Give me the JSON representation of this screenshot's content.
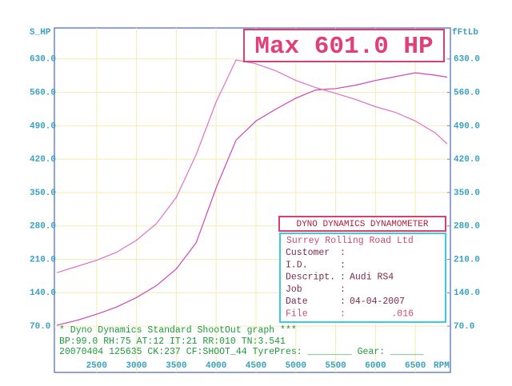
{
  "chart_data": {
    "type": "line",
    "title": "Max 601.0 HP",
    "y_label": "S_HP",
    "y2_label": "fFtLb",
    "x_label": "RPM",
    "x": [
      2000,
      2250,
      2500,
      2750,
      3000,
      3250,
      3500,
      3750,
      4000,
      4250,
      4500,
      4750,
      5000,
      5250,
      5500,
      5750,
      6000,
      6250,
      6500,
      6750,
      6900
    ],
    "series": [
      {
        "name": "HP",
        "color": "#d044b8",
        "values": [
          72,
          82,
          95,
          110,
          130,
          155,
          190,
          245,
          360,
          460,
          500,
          525,
          548,
          565,
          568,
          575,
          585,
          593,
          601,
          596,
          592
        ]
      },
      {
        "name": "FtLb",
        "color": "#e070c8",
        "axis": "y2",
        "values": [
          182,
          195,
          208,
          225,
          250,
          285,
          340,
          430,
          540,
          628,
          620,
          605,
          585,
          570,
          558,
          545,
          530,
          518,
          500,
          475,
          452
        ]
      }
    ],
    "xlim": [
      1970,
      6940
    ],
    "xticks": [
      2500,
      3000,
      3500,
      4000,
      4500,
      5000,
      5500,
      6000,
      6500
    ],
    "ylim": [
      -27,
      695
    ],
    "yticks": [
      {
        "value": 70,
        "label": "70.0"
      },
      {
        "value": 140,
        "label": "140.0"
      },
      {
        "value": 210,
        "label": "210.0"
      },
      {
        "value": 280,
        "label": "280.0"
      },
      {
        "value": 350,
        "label": "350.0"
      },
      {
        "value": 420,
        "label": "420.0"
      },
      {
        "value": 490,
        "label": "490.0"
      },
      {
        "value": 560,
        "label": "560.0"
      },
      {
        "value": 630,
        "label": "630.0"
      }
    ],
    "y2lim": [
      -27,
      695
    ],
    "y2ticks": [
      {
        "value": 70,
        "label": "70.0"
      },
      {
        "value": 140,
        "label": "140.0"
      },
      {
        "value": 210,
        "label": "210.0"
      },
      {
        "value": 280,
        "label": "280.0"
      },
      {
        "value": 350,
        "label": "350.0"
      },
      {
        "value": 420,
        "label": "420.0"
      },
      {
        "value": 490,
        "label": "490.0"
      },
      {
        "value": 560,
        "label": "560.0"
      },
      {
        "value": 630,
        "label": "630.0"
      }
    ],
    "grid": true,
    "footer": [
      "* Dyno Dynamics Standard ShootOut graph ***",
      "BP:99.0  RH:75 AT:12 IT:21  RR:010 TN:3.541",
      "20070404 125635 CK:237 CF:SHOOT_44 TyrePres: ________ Gear: ______"
    ],
    "info": {
      "title": "DYNO DYNAMICS DYNAMOMETER",
      "heading": "Surrey Rolling Road Ltd",
      "rows": [
        {
          "label": "Customer",
          "sep": ":"
        },
        {
          "label": "I.D.",
          "sep": ":"
        },
        {
          "label": "Descript.",
          "sep": ":",
          "value": "Audi RS4"
        },
        {
          "label": "Job",
          "sep": ":"
        },
        {
          "label": "Date",
          "sep": ":",
          "value": "04-04-2007"
        },
        {
          "label": "File",
          "sep": ":",
          "value": ".016"
        }
      ]
    }
  }
}
